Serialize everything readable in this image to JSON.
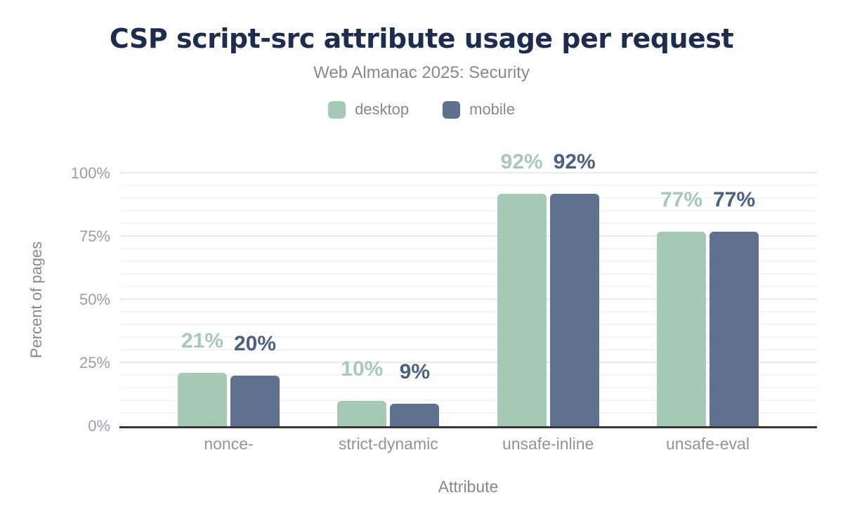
{
  "chart_data": {
    "type": "bar",
    "title": "CSP script-src attribute usage per request",
    "subtitle": "Web Almanac 2025: Security",
    "xlabel": "Attribute",
    "ylabel": "Percent of pages",
    "categories": [
      "nonce-",
      "strict-dynamic",
      "unsafe-inline",
      "unsafe-eval"
    ],
    "series": [
      {
        "name": "desktop",
        "color": "#a5c9b4",
        "label_color": "#a6cab7",
        "values": [
          21,
          10,
          92,
          77
        ]
      },
      {
        "name": "mobile",
        "color": "#5f718e",
        "label_color": "#4c6080",
        "values": [
          20,
          9,
          92,
          77
        ]
      }
    ],
    "value_suffix": "%",
    "ylim": [
      0,
      100
    ],
    "yticks": [
      0,
      25,
      50,
      75,
      100
    ],
    "ytick_labels": [
      "0%",
      "25%",
      "50%",
      "75%",
      "100%"
    ],
    "minor_tick_step": 5,
    "major_tick_step": 25,
    "grid": true,
    "legend_position": "top",
    "colors": {
      "title": "#1e2d4e",
      "subtitle": "#84888f",
      "axis_text": "#989ea7",
      "axis_title": "#85898f",
      "category_text": "#8f949c",
      "gridline_major": "#e9e9e9",
      "gridline_minor": "#f5f5f5",
      "axis_line": "#33373c",
      "background": "#ffffff"
    }
  }
}
